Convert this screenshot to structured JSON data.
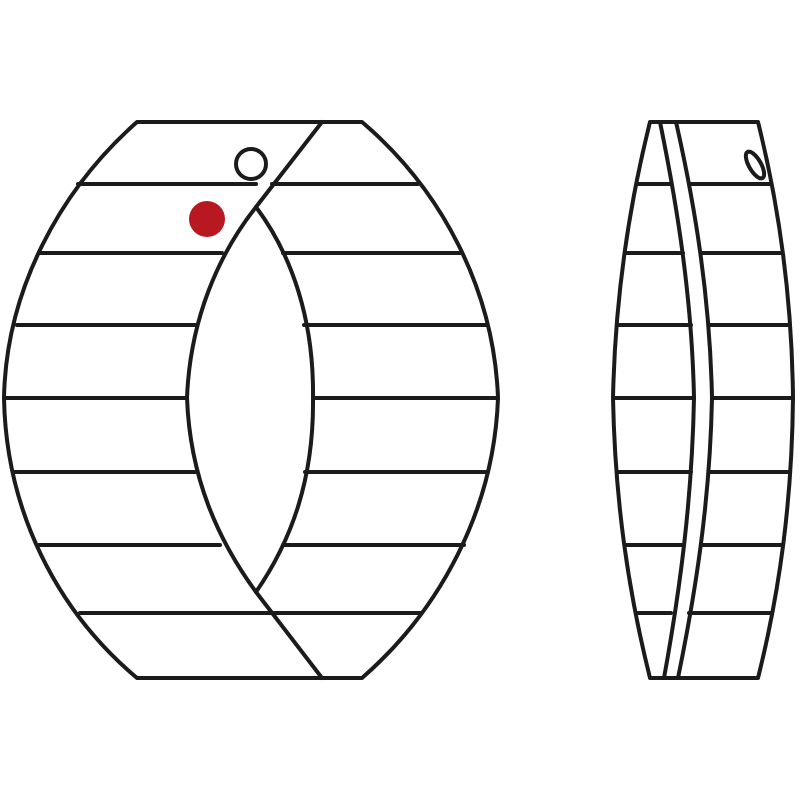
{
  "views": [
    {
      "name": "front-view"
    },
    {
      "name": "side-view"
    }
  ],
  "colors": {
    "outline": "#1b1b1b",
    "marker": "#b8181f",
    "background": "#ffffff"
  },
  "icons": {
    "marker": "red-dot-icon",
    "hole": "hanging-hole-icon"
  }
}
